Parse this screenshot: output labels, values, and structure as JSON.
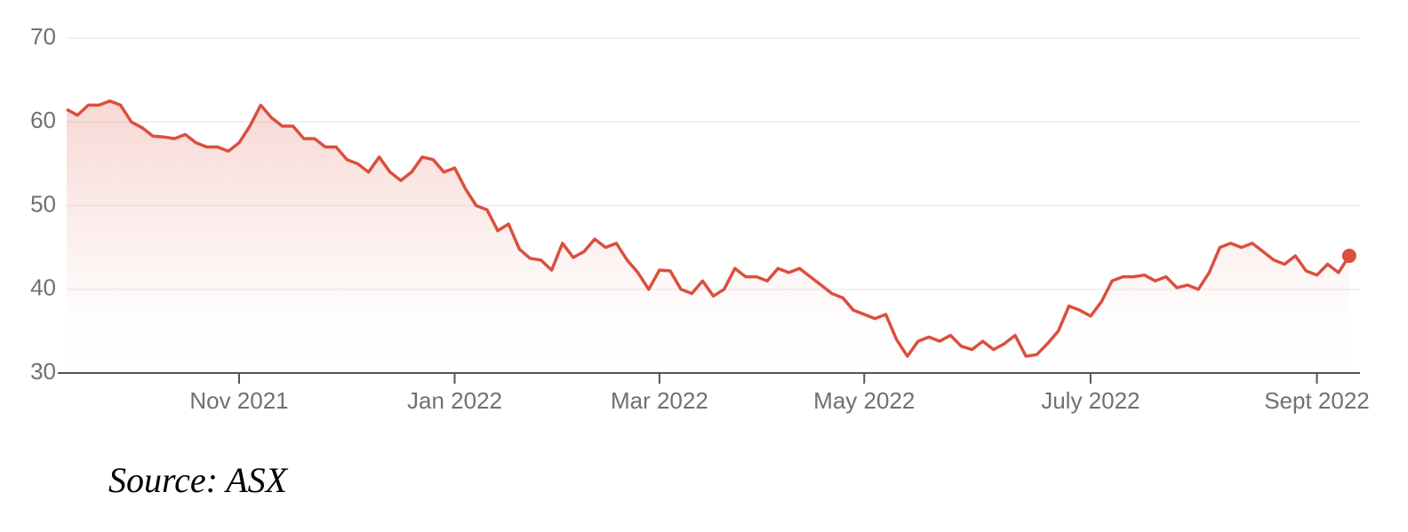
{
  "chart_data": {
    "type": "line",
    "source": "Source: ASX",
    "categories": [
      null,
      null,
      null,
      null,
      null,
      null,
      null,
      null,
      null,
      null,
      null,
      null,
      null,
      null,
      null,
      null,
      "Nov 2021",
      null,
      null,
      null,
      null,
      null,
      null,
      null,
      null,
      null,
      null,
      null,
      null,
      null,
      null,
      null,
      null,
      null,
      null,
      null,
      "Jan 2022",
      null,
      null,
      null,
      null,
      null,
      null,
      null,
      null,
      null,
      null,
      null,
      null,
      null,
      null,
      null,
      null,
      null,
      null,
      "Mar 2022",
      null,
      null,
      null,
      null,
      null,
      null,
      null,
      null,
      null,
      null,
      null,
      null,
      null,
      null,
      null,
      null,
      null,
      null,
      "May 2022",
      null,
      null,
      null,
      null,
      null,
      null,
      null,
      null,
      null,
      null,
      null,
      null,
      null,
      null,
      null,
      null,
      null,
      null,
      null,
      null,
      "July 2022",
      null,
      null,
      null,
      null,
      null,
      null,
      null,
      null,
      null,
      null,
      null,
      null,
      null,
      null,
      null,
      null,
      null,
      null,
      null,
      null,
      "Sept 2022",
      null,
      null,
      null
    ],
    "values": [
      61.5,
      60.8,
      62,
      62,
      62.5,
      62,
      60,
      59.3,
      58.3,
      58.2,
      58,
      58.5,
      57.5,
      57,
      57,
      56.5,
      57.5,
      59.5,
      62,
      60.5,
      59.5,
      59.5,
      58,
      58,
      57,
      57,
      55.5,
      55,
      54,
      55.8,
      54,
      53,
      54,
      55.8,
      55.5,
      54,
      54.5,
      52,
      50,
      49.5,
      47,
      47.8,
      44.8,
      43.7,
      43.5,
      42.3,
      45.5,
      43.8,
      44.5,
      46,
      45,
      45.5,
      43.5,
      42,
      40,
      42.3,
      42.2,
      40,
      39.5,
      41,
      39.2,
      40,
      42.5,
      41.5,
      41.5,
      41,
      42.5,
      42,
      42.5,
      41.5,
      40.5,
      39.5,
      39,
      37.5,
      37,
      36.5,
      37,
      34,
      32,
      33.8,
      34.3,
      33.8,
      34.5,
      33.2,
      32.8,
      33.8,
      32.8,
      33.5,
      34.5,
      32,
      32.2,
      33.5,
      35,
      38,
      37.5,
      36.8,
      38.5,
      41,
      41.5,
      41.5,
      41.7,
      41,
      41.5,
      40.2,
      40.5,
      40,
      42,
      45,
      45.5,
      45,
      45.5,
      44.5,
      43.5,
      43,
      44,
      42.2,
      41.7,
      43,
      42,
      44
    ],
    "color": "#db4f3d",
    "ylim": [
      30,
      70
    ],
    "yticks": [
      30,
      40,
      50,
      60,
      70
    ],
    "grid": true
  }
}
